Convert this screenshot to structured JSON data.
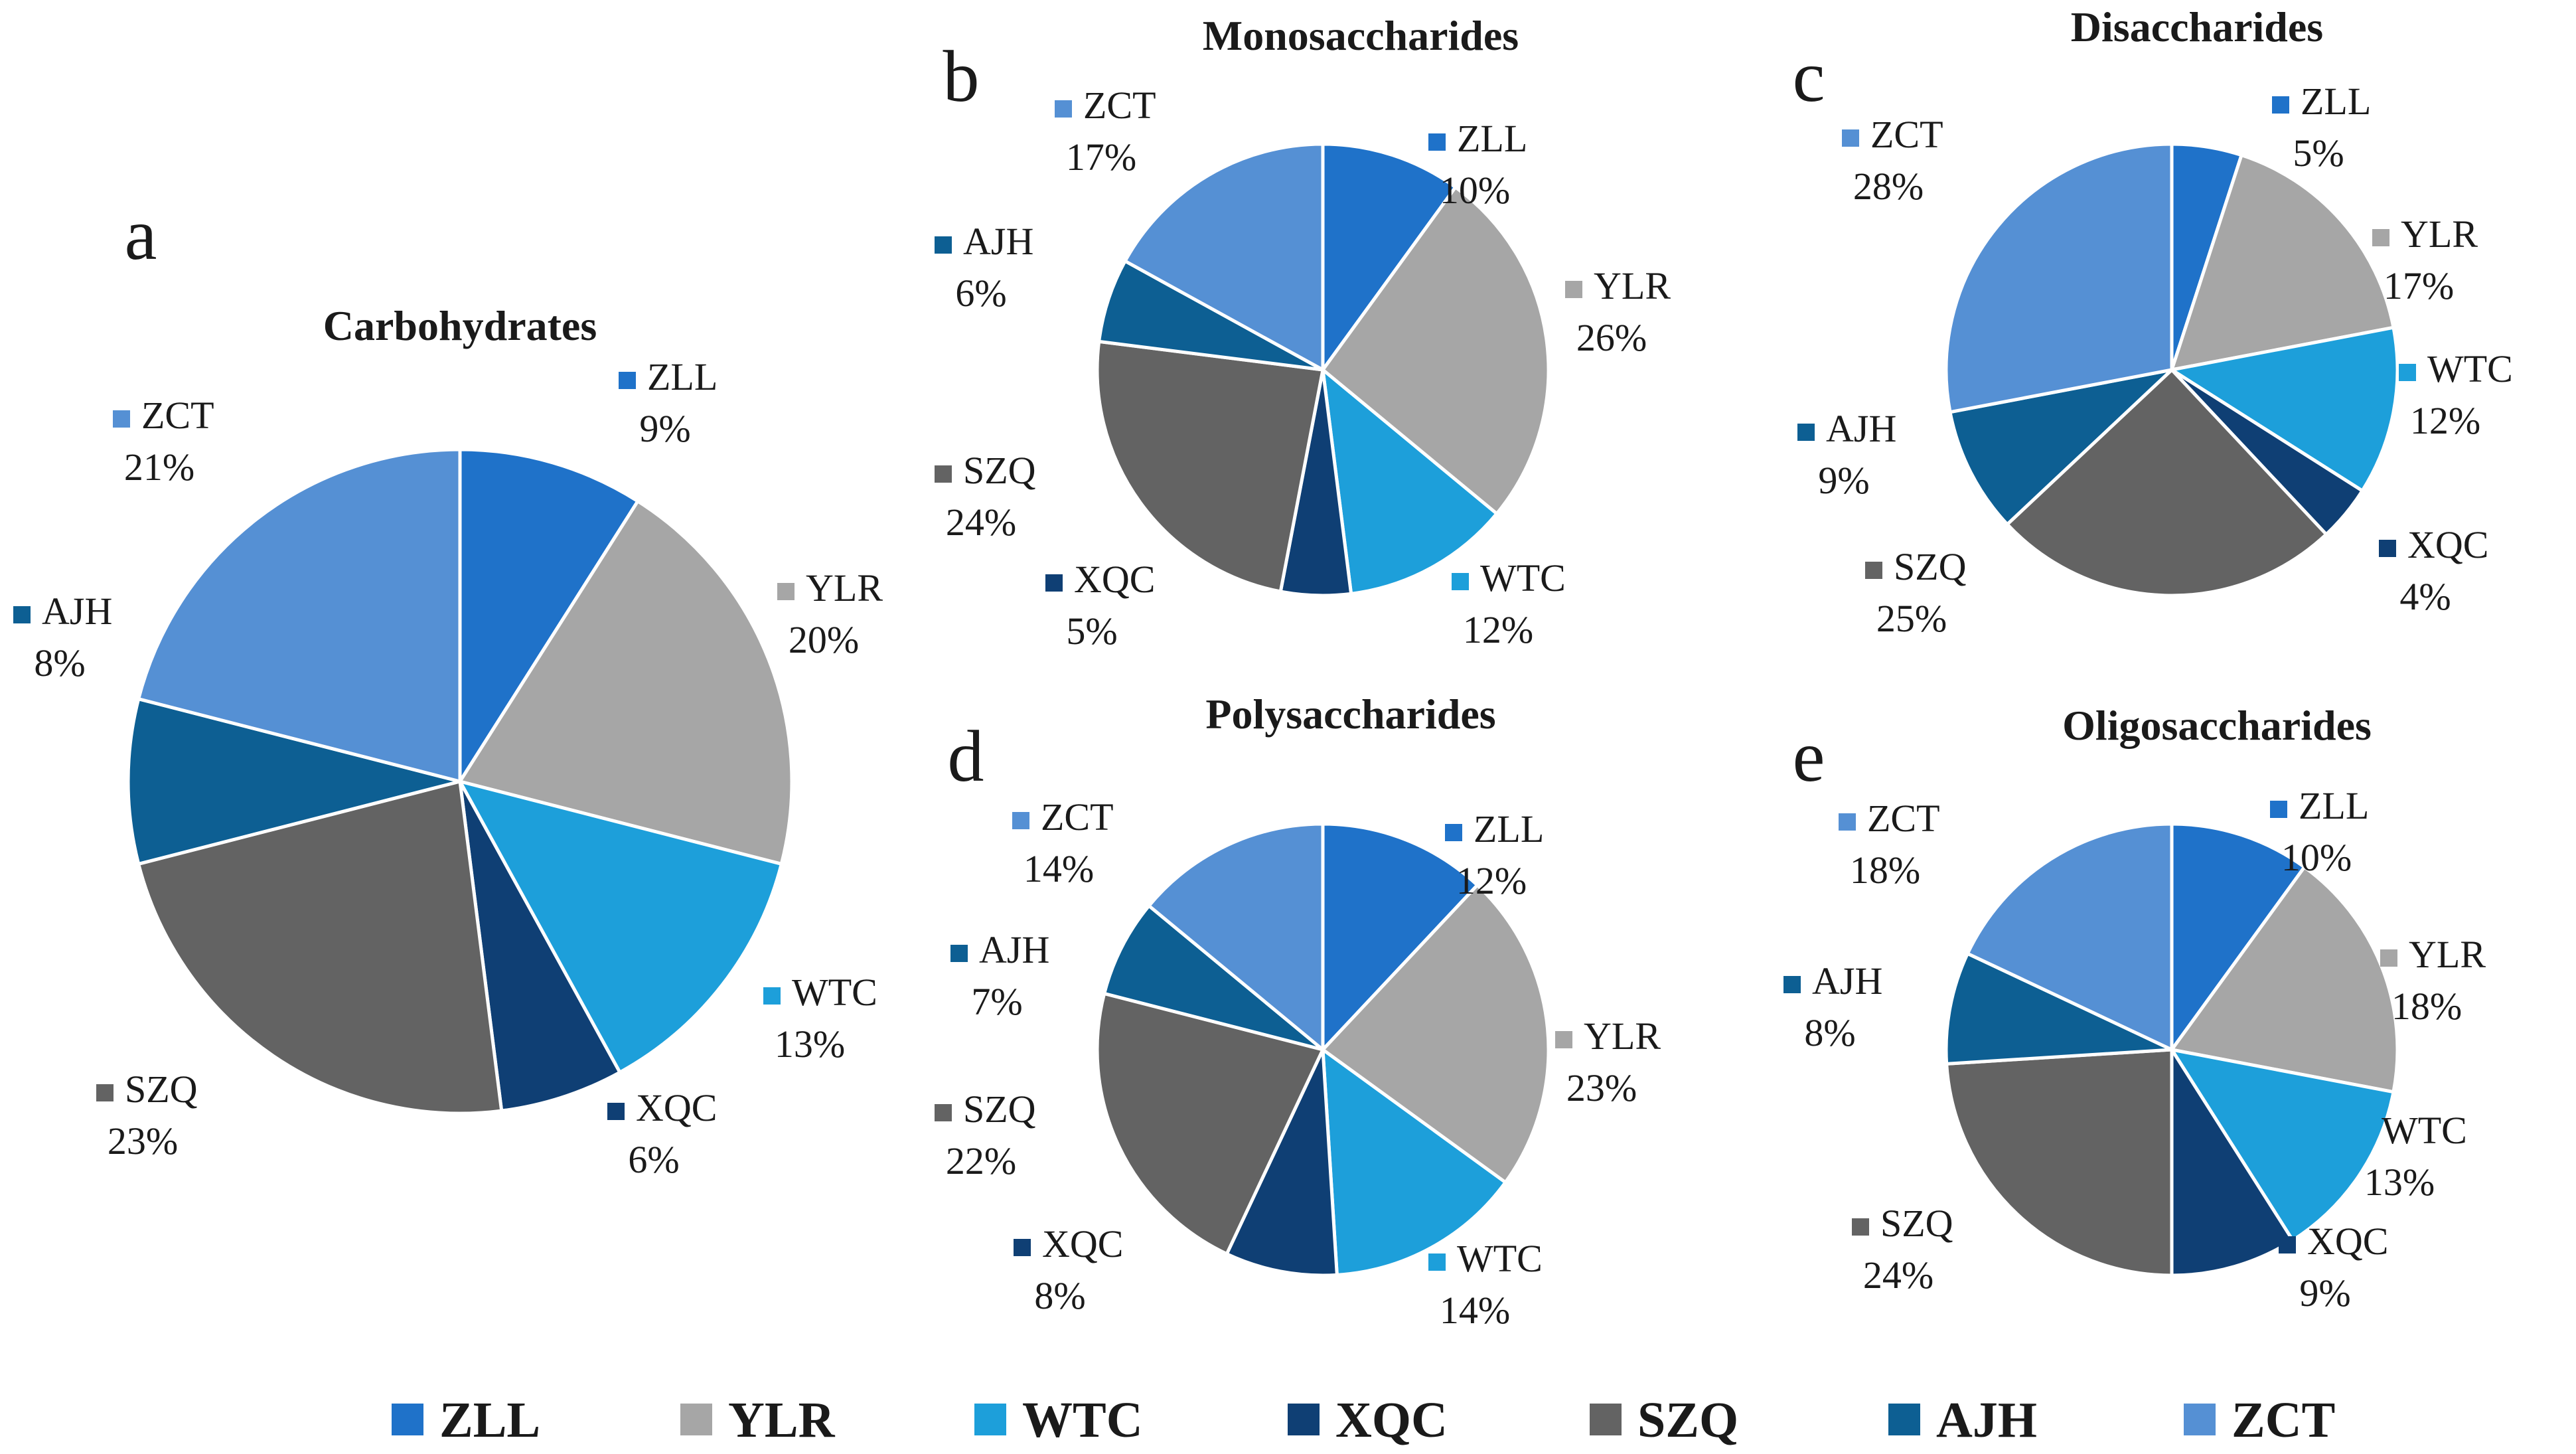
{
  "chart_data": [
    {
      "type": "pie",
      "panel": "a",
      "title": "Carbohydrates",
      "slices": [
        {
          "name": "ZLL",
          "percent_label": "9%",
          "value": 9
        },
        {
          "name": "YLR",
          "percent_label": "20%",
          "value": 20
        },
        {
          "name": "WTC",
          "percent_label": "13%",
          "value": 13
        },
        {
          "name": "XQC",
          "percent_label": "6%",
          "value": 6
        },
        {
          "name": "SZQ",
          "percent_label": "23%",
          "value": 23
        },
        {
          "name": "AJH",
          "percent_label": "8%",
          "value": 8
        },
        {
          "name": "ZCT",
          "percent_label": "21%",
          "value": 21
        }
      ]
    },
    {
      "type": "pie",
      "panel": "b",
      "title": "Monosaccharides",
      "slices": [
        {
          "name": "ZLL",
          "percent_label": "10%",
          "value": 10
        },
        {
          "name": "YLR",
          "percent_label": "26%",
          "value": 26
        },
        {
          "name": "WTC",
          "percent_label": "12%",
          "value": 12
        },
        {
          "name": "XQC",
          "percent_label": "5%",
          "value": 5
        },
        {
          "name": "SZQ",
          "percent_label": "24%",
          "value": 24
        },
        {
          "name": "AJH",
          "percent_label": "6%",
          "value": 6
        },
        {
          "name": "ZCT",
          "percent_label": "17%",
          "value": 17
        }
      ]
    },
    {
      "type": "pie",
      "panel": "c",
      "title": "Disaccharides",
      "slices": [
        {
          "name": "ZLL",
          "percent_label": "5%",
          "value": 5
        },
        {
          "name": "YLR",
          "percent_label": "17%",
          "value": 17
        },
        {
          "name": "WTC",
          "percent_label": "12%",
          "value": 12
        },
        {
          "name": "XQC",
          "percent_label": "4%",
          "value": 4
        },
        {
          "name": "SZQ",
          "percent_label": "25%",
          "value": 25
        },
        {
          "name": "AJH",
          "percent_label": "9%",
          "value": 9
        },
        {
          "name": "ZCT",
          "percent_label": "28%",
          "value": 28
        }
      ]
    },
    {
      "type": "pie",
      "panel": "d",
      "title": "Polysaccharides",
      "slices": [
        {
          "name": "ZLL",
          "percent_label": "12%",
          "value": 12
        },
        {
          "name": "YLR",
          "percent_label": "23%",
          "value": 23
        },
        {
          "name": "WTC",
          "percent_label": "14%",
          "value": 14
        },
        {
          "name": "XQC",
          "percent_label": "8%",
          "value": 8
        },
        {
          "name": "SZQ",
          "percent_label": "22%",
          "value": 22
        },
        {
          "name": "AJH",
          "percent_label": "7%",
          "value": 7
        },
        {
          "name": "ZCT",
          "percent_label": "14%",
          "value": 14
        }
      ]
    },
    {
      "type": "pie",
      "panel": "e",
      "title": "Oligosaccharides",
      "slices": [
        {
          "name": "ZLL",
          "percent_label": "10%",
          "value": 10
        },
        {
          "name": "YLR",
          "percent_label": "18%",
          "value": 18
        },
        {
          "name": "WTC",
          "percent_label": "13%",
          "value": 13
        },
        {
          "name": "XQC",
          "percent_label": "9%",
          "value": 9
        },
        {
          "name": "SZQ",
          "percent_label": "24%",
          "value": 24
        },
        {
          "name": "AJH",
          "percent_label": "8%",
          "value": 8
        },
        {
          "name": "ZCT",
          "percent_label": "18%",
          "value": 18
        }
      ]
    }
  ],
  "legend": {
    "placement": "bottom",
    "items": [
      {
        "name": "ZLL",
        "color": "#1f72c9"
      },
      {
        "name": "YLR",
        "color": "#a6a6a6"
      },
      {
        "name": "WTC",
        "color": "#1d9fda"
      },
      {
        "name": "XQC",
        "color": "#0f3f74"
      },
      {
        "name": "SZQ",
        "color": "#636363"
      },
      {
        "name": "AJH",
        "color": "#0d5f93"
      },
      {
        "name": "ZCT",
        "color": "#5590d4"
      }
    ]
  }
}
